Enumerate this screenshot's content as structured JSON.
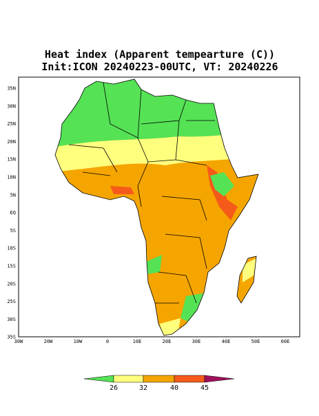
{
  "title": "Heat index (Apparent tempearture (C))",
  "subtitle": "Init:ICON 20240223-00UTC, VT: 20240226",
  "lat_labels": [
    "35N",
    "30N",
    "25N",
    "20N",
    "15N",
    "10N",
    "5N",
    "EQ",
    "5S",
    "10S",
    "15S",
    "20S",
    "25S",
    "30S",
    "35S"
  ],
  "lon_labels": [
    "30W",
    "20W",
    "10W",
    "0",
    "10E",
    "20E",
    "30E",
    "40E",
    "50E",
    "60E"
  ],
  "colorbar": {
    "levels": [
      26,
      32,
      40,
      45
    ]
  }
}
